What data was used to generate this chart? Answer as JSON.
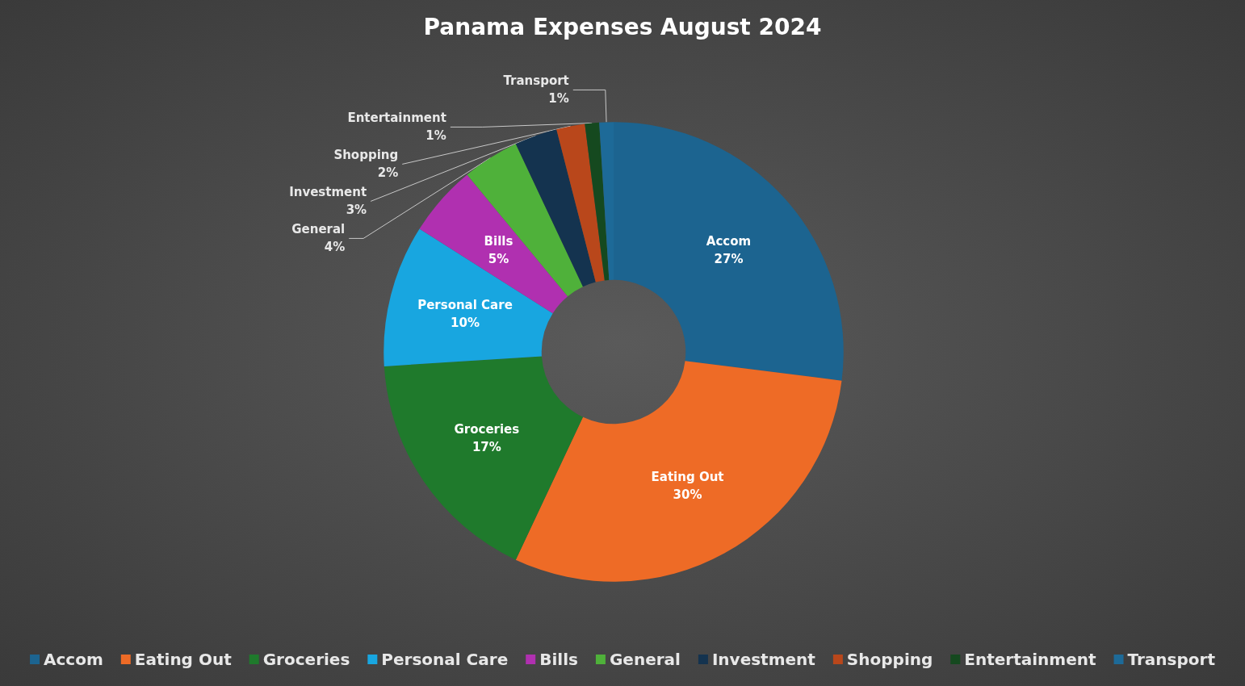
{
  "chart_data": {
    "type": "donut",
    "title": "Panama Expenses August 2024",
    "categories": [
      "Accom",
      "Eating Out",
      "Groceries",
      "Personal Care",
      "Bills",
      "General",
      "Investment",
      "Shopping",
      "Entertainment",
      "Transport"
    ],
    "values": [
      27,
      30,
      17,
      10,
      5,
      4,
      3,
      2,
      1,
      1
    ],
    "value_labels": [
      "27%",
      "30%",
      "17%",
      "10%",
      "5%",
      "4%",
      "3%",
      "2%",
      "1%",
      "1%"
    ],
    "colors": [
      "#1c6490",
      "#ee6b26",
      "#1f7a2c",
      "#18a6e0",
      "#b030b0",
      "#4fb13a",
      "#14334f",
      "#b9471b",
      "#15491f",
      "#1d6a98"
    ],
    "legend": "bottom"
  }
}
